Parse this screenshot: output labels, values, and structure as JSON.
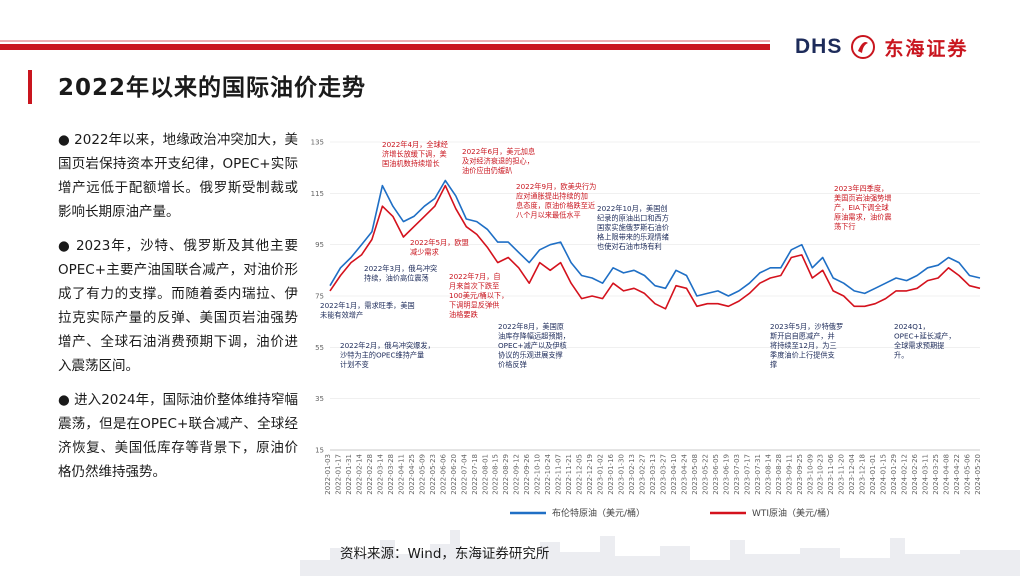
{
  "header": {
    "logo_text": "DHS",
    "logo_cn": "东海证券",
    "title": "2022年以来的国际油价走势",
    "accent_color": "#c9151e",
    "brand_color": "#1d2b5a"
  },
  "bullets": [
    "● 2022年以来，地缘政治冲突加大，美国页岩保持资本开支纪律，OPEC+实际增产远低于配额增长。俄罗斯受制裁或影响长期原油产量。",
    "● 2023年，沙特、俄罗斯及其他主要OPEC+主要产油国联合减产，对油价形成了有力的支撑。而随着委内瑞拉、伊拉克实际产量的反弹、美国页岩油强势增产、全球石油消费预期下调，油价进入震荡区间。",
    "● 进入2024年，国际油价整体维持窄幅震荡，但是在OPEC+联合减产、全球经济恢复、美国低库存等背景下，原油价格仍然维持强势。"
  ],
  "footer": {
    "source": "资料来源：Wind，东海证券研究所"
  },
  "chart_data": {
    "type": "line",
    "x_ticks": [
      "2022-01-03",
      "2022-01-17",
      "2022-01-31",
      "2022-02-14",
      "2022-02-28",
      "2022-03-14",
      "2022-03-28",
      "2022-04-11",
      "2022-04-25",
      "2022-05-09",
      "2022-05-23",
      "2022-06-06",
      "2022-06-20",
      "2022-07-04",
      "2022-07-18",
      "2022-08-01",
      "2022-08-15",
      "2022-08-29",
      "2022-09-12",
      "2022-09-26",
      "2022-10-10",
      "2022-10-24",
      "2022-11-07",
      "2022-11-21",
      "2022-12-05",
      "2022-12-19",
      "2023-01-02",
      "2023-01-16",
      "2023-01-30",
      "2023-02-13",
      "2023-02-27",
      "2023-03-13",
      "2023-03-27",
      "2023-04-10",
      "2023-04-24",
      "2023-05-08",
      "2023-05-22",
      "2023-06-05",
      "2023-06-19",
      "2023-07-03",
      "2023-07-17",
      "2023-07-31",
      "2023-08-14",
      "2023-08-28",
      "2023-09-11",
      "2023-09-25",
      "2023-10-09",
      "2023-10-23",
      "2023-11-06",
      "2023-11-20",
      "2023-12-04",
      "2023-12-18",
      "2024-01-01",
      "2024-01-15",
      "2024-01-29",
      "2024-02-12",
      "2024-02-26",
      "2024-03-11",
      "2024-03-25",
      "2024-04-08",
      "2024-04-22",
      "2024-05-06",
      "2024-05-20"
    ],
    "y_ticks": [
      "135",
      "115",
      "95",
      "75",
      "55",
      "35",
      "15"
    ],
    "ylim": [
      15,
      135
    ],
    "series": [
      {
        "name": "布伦特原油（美元/桶）",
        "color": "#1f6fc5",
        "values": [
          79,
          86,
          90,
          95,
          100,
          118,
          110,
          104,
          106,
          110,
          113,
          120,
          114,
          105,
          104,
          101,
          96,
          96,
          92,
          88,
          93,
          95,
          96,
          88,
          83,
          82,
          80,
          86,
          84,
          85,
          83,
          79,
          78,
          85,
          83,
          75,
          76,
          77,
          75,
          77,
          80,
          84,
          86,
          86,
          93,
          95,
          86,
          90,
          82,
          80,
          77,
          76,
          78,
          80,
          82,
          81,
          83,
          86,
          87,
          90,
          88,
          83,
          82
        ]
      },
      {
        "name": "WTI原油（美元/桶）",
        "color": "#d4121d",
        "values": [
          77,
          83,
          88,
          91,
          97,
          110,
          106,
          98,
          102,
          106,
          110,
          118,
          109,
          102,
          99,
          94,
          88,
          90,
          86,
          80,
          88,
          85,
          88,
          80,
          74,
          75,
          74,
          80,
          77,
          78,
          76,
          72,
          70,
          79,
          78,
          71,
          72,
          72,
          71,
          73,
          76,
          80,
          82,
          83,
          90,
          91,
          82,
          85,
          77,
          75,
          71,
          71,
          72,
          74,
          77,
          77,
          78,
          81,
          82,
          86,
          83,
          79,
          78
        ]
      }
    ],
    "annotations": [
      {
        "lines": [
          "2022年1月，需求旺季，美国",
          "未能有效增产"
        ],
        "color": "dark"
      },
      {
        "lines": [
          "2022年2月，俄乌冲突爆发，",
          "沙特为主的OPEC维持产量",
          "计划不变"
        ],
        "color": "dark"
      },
      {
        "lines": [
          "2022年3月，俄乌冲突",
          "持续，油价高位震荡"
        ],
        "color": "dark"
      },
      {
        "lines": [
          "2022年4月，全球经",
          "济增长放缓下调，美",
          "国油机数持续增长"
        ],
        "color": "red"
      },
      {
        "lines": [
          "2022年5月，欧盟",
          "减少需求"
        ],
        "color": "red"
      },
      {
        "lines": [
          "2022年6月，美元加息",
          "及对经济衰退的担心，",
          "油价应由仍缓趴"
        ],
        "color": "red"
      },
      {
        "lines": [
          "2022年7月，自",
          "月来首次下跌至",
          "100美元/桶以下，",
          "下调明显反弹供",
          "油格要跌"
        ],
        "color": "red"
      },
      {
        "lines": [
          "2022年8月，美国原",
          "油库存降幅远超预期，",
          "OPEC+减产以及伊核",
          "协议的乐观进展支撑",
          "价格反弹"
        ],
        "color": "dark"
      },
      {
        "lines": [
          "2022年9月，欧美央行为",
          "应对通胀提出持续的加",
          "息态度，原油价格跌至近",
          "八个月以来最低水平"
        ],
        "color": "red"
      },
      {
        "lines": [
          "2022年10月，美国创",
          "纪录的原油出口和西方",
          "国家实施俄罗斯石油价",
          "格上限带来的乐观情绪",
          "也使对石油市场有利"
        ],
        "color": "dark"
      },
      {
        "lines": [
          "2023年四季度，",
          "美国页岩油强势增",
          "产，EIA下调全球",
          "原油需求，油价震",
          "荡下行"
        ],
        "color": "red"
      },
      {
        "lines": [
          "2023年5月，沙特俄罗",
          "斯开启自愿减产，并",
          "将持续至12月，为三",
          "季度油价上行提供支",
          "撑"
        ],
        "color": "dark"
      },
      {
        "lines": [
          "2024Q1，",
          "OPEC+延长减产，",
          "全球需求预期提",
          "升。"
        ],
        "color": "dark"
      }
    ]
  }
}
